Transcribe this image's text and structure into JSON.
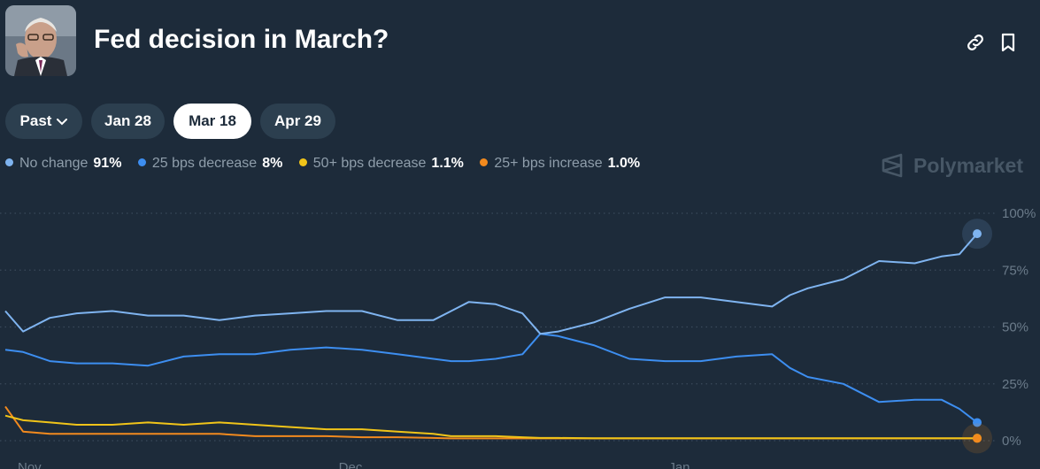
{
  "header": {
    "title": "Fed decision in March?"
  },
  "tabs": [
    {
      "label": "Past",
      "active": false,
      "dropdown": true
    },
    {
      "label": "Jan 28",
      "active": false
    },
    {
      "label": "Mar 18",
      "active": true
    },
    {
      "label": "Apr 29",
      "active": false
    }
  ],
  "brand": {
    "name": "Polymarket"
  },
  "colors": {
    "background": "#1d2b3a",
    "no_change": "#7fb4f0",
    "bps25_decrease": "#3d8ef0",
    "bps50_decrease": "#f0c419",
    "bps25_increase": "#f28a1e"
  },
  "icons": [
    "link-icon",
    "bookmark-icon",
    "chevron-down-icon",
    "polymarket-logo-icon"
  ],
  "legend": [
    {
      "name": "No change",
      "value": "91%",
      "color": "#7fb4f0"
    },
    {
      "name": "25 bps decrease",
      "value": "8%",
      "color": "#3d8ef0"
    },
    {
      "name": "50+ bps decrease",
      "value": "1.1%",
      "color": "#f0c419"
    },
    {
      "name": "25+ bps increase",
      "value": "1.0%",
      "color": "#f28a1e"
    }
  ],
  "chart_data": {
    "type": "line",
    "ylim": [
      0,
      100
    ],
    "y_ticks": [
      "100%",
      "75%",
      "50%",
      "25%",
      "0%"
    ],
    "y_tick_values": [
      100,
      75,
      50,
      25,
      0
    ],
    "x_ticks": [
      "Nov",
      "Dec",
      "Jan"
    ],
    "x_tick_values": [
      0,
      36,
      73
    ],
    "x": [
      0,
      2,
      5,
      8,
      12,
      16,
      20,
      24,
      28,
      32,
      36,
      40,
      44,
      48,
      50,
      52,
      55,
      58,
      60,
      62,
      66,
      70,
      74,
      78,
      82,
      86,
      88,
      90,
      94,
      98,
      102,
      105,
      107,
      109
    ],
    "series": [
      {
        "name": "No change",
        "color": "#7fb4f0",
        "values": [
          57,
          48,
          54,
          56,
          57,
          55,
          55,
          53,
          55,
          56,
          57,
          57,
          53,
          53,
          57,
          61,
          60,
          56,
          47,
          48,
          52,
          58,
          63,
          63,
          61,
          59,
          64,
          67,
          71,
          79,
          78,
          81,
          82,
          91
        ]
      },
      {
        "name": "25 bps decrease",
        "color": "#3d8ef0",
        "values": [
          40,
          39,
          35,
          34,
          34,
          33,
          37,
          38,
          38,
          40,
          41,
          40,
          38,
          36,
          35,
          35,
          36,
          38,
          47,
          46,
          42,
          36,
          35,
          35,
          37,
          38,
          32,
          28,
          25,
          17,
          18,
          18,
          14,
          8
        ]
      },
      {
        "name": "50+ bps decrease",
        "color": "#f0c419",
        "values": [
          11,
          9,
          8,
          7,
          7,
          8,
          7,
          8,
          7,
          6,
          5,
          5,
          4,
          3,
          2,
          2,
          2,
          1.5,
          1.2,
          1.2,
          1.1,
          1.1,
          1.1,
          1.1,
          1.1,
          1.1,
          1.1,
          1.1,
          1.1,
          1.1,
          1.1,
          1.1,
          1.1,
          1.1
        ]
      },
      {
        "name": "25+ bps increase",
        "color": "#f28a1e",
        "values": [
          15,
          4,
          3,
          3,
          3,
          3,
          3,
          3,
          2,
          2,
          2,
          1.5,
          1.5,
          1.2,
          1.0,
          1.0,
          1.0,
          1.0,
          1.0,
          1.0,
          1.0,
          1.0,
          1.0,
          1.0,
          1.0,
          1.0,
          1.0,
          1.0,
          1.0,
          1.0,
          1.0,
          1.0,
          1.0,
          1.0
        ]
      }
    ],
    "grid": true
  }
}
